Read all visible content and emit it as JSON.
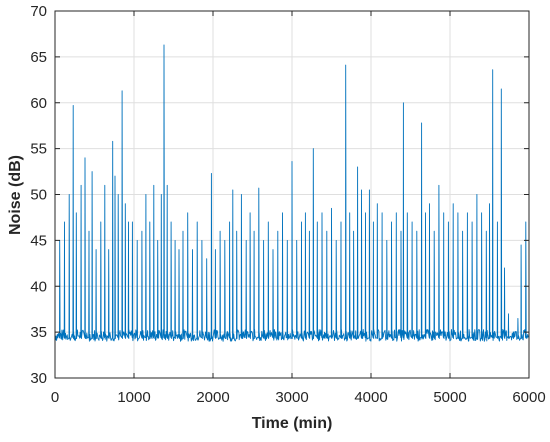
{
  "chart_data": {
    "type": "line",
    "title": "",
    "xlabel": "Time (min)",
    "ylabel": "Noise (dB)",
    "xlim": [
      0,
      6000
    ],
    "ylim": [
      30,
      70
    ],
    "xticks": [
      0,
      1000,
      2000,
      3000,
      4000,
      5000,
      6000
    ],
    "yticks": [
      30,
      35,
      40,
      45,
      50,
      55,
      60,
      65,
      70
    ],
    "xtick_labels": [
      "0",
      "1000",
      "2000",
      "3000",
      "4000",
      "5000",
      "6000"
    ],
    "ytick_labels": [
      "30",
      "35",
      "40",
      "45",
      "50",
      "55",
      "60",
      "65",
      "70"
    ],
    "grid": true,
    "baseline_db": 34.0,
    "line_color": "#0072BD",
    "peaks": [
      {
        "x": 60,
        "y": 45
      },
      {
        "x": 120,
        "y": 47
      },
      {
        "x": 180,
        "y": 50
      },
      {
        "x": 230,
        "y": 59.7
      },
      {
        "x": 270,
        "y": 48
      },
      {
        "x": 330,
        "y": 51
      },
      {
        "x": 380,
        "y": 54
      },
      {
        "x": 430,
        "y": 46
      },
      {
        "x": 470,
        "y": 52.5
      },
      {
        "x": 520,
        "y": 44
      },
      {
        "x": 580,
        "y": 47
      },
      {
        "x": 630,
        "y": 51
      },
      {
        "x": 680,
        "y": 44
      },
      {
        "x": 730,
        "y": 55.8
      },
      {
        "x": 760,
        "y": 52
      },
      {
        "x": 800,
        "y": 50
      },
      {
        "x": 850,
        "y": 61.3
      },
      {
        "x": 890,
        "y": 49
      },
      {
        "x": 930,
        "y": 47
      },
      {
        "x": 980,
        "y": 47
      },
      {
        "x": 1040,
        "y": 45
      },
      {
        "x": 1100,
        "y": 46
      },
      {
        "x": 1150,
        "y": 50
      },
      {
        "x": 1200,
        "y": 47
      },
      {
        "x": 1250,
        "y": 51
      },
      {
        "x": 1300,
        "y": 45
      },
      {
        "x": 1345,
        "y": 50
      },
      {
        "x": 1380,
        "y": 66.3
      },
      {
        "x": 1420,
        "y": 51
      },
      {
        "x": 1470,
        "y": 47
      },
      {
        "x": 1520,
        "y": 45
      },
      {
        "x": 1570,
        "y": 44
      },
      {
        "x": 1620,
        "y": 46
      },
      {
        "x": 1680,
        "y": 48
      },
      {
        "x": 1740,
        "y": 44
      },
      {
        "x": 1800,
        "y": 47
      },
      {
        "x": 1860,
        "y": 45
      },
      {
        "x": 1920,
        "y": 43
      },
      {
        "x": 1980,
        "y": 52.3
      },
      {
        "x": 2030,
        "y": 44
      },
      {
        "x": 2090,
        "y": 46
      },
      {
        "x": 2150,
        "y": 45
      },
      {
        "x": 2210,
        "y": 47
      },
      {
        "x": 2250,
        "y": 50.5
      },
      {
        "x": 2300,
        "y": 46
      },
      {
        "x": 2360,
        "y": 50
      },
      {
        "x": 2420,
        "y": 45
      },
      {
        "x": 2470,
        "y": 48
      },
      {
        "x": 2520,
        "y": 46
      },
      {
        "x": 2580,
        "y": 50.7
      },
      {
        "x": 2640,
        "y": 45
      },
      {
        "x": 2700,
        "y": 47
      },
      {
        "x": 2760,
        "y": 44
      },
      {
        "x": 2820,
        "y": 46
      },
      {
        "x": 2880,
        "y": 48
      },
      {
        "x": 2940,
        "y": 45
      },
      {
        "x": 3000,
        "y": 53.6
      },
      {
        "x": 3060,
        "y": 45
      },
      {
        "x": 3120,
        "y": 47
      },
      {
        "x": 3170,
        "y": 48
      },
      {
        "x": 3220,
        "y": 46
      },
      {
        "x": 3270,
        "y": 55
      },
      {
        "x": 3320,
        "y": 47
      },
      {
        "x": 3380,
        "y": 48
      },
      {
        "x": 3440,
        "y": 46
      },
      {
        "x": 3500,
        "y": 48.5
      },
      {
        "x": 3560,
        "y": 45
      },
      {
        "x": 3620,
        "y": 47
      },
      {
        "x": 3680,
        "y": 64.1
      },
      {
        "x": 3730,
        "y": 48
      },
      {
        "x": 3780,
        "y": 46
      },
      {
        "x": 3830,
        "y": 53
      },
      {
        "x": 3880,
        "y": 50.5
      },
      {
        "x": 3930,
        "y": 48
      },
      {
        "x": 3980,
        "y": 50.5
      },
      {
        "x": 4030,
        "y": 47
      },
      {
        "x": 4080,
        "y": 49
      },
      {
        "x": 4140,
        "y": 48
      },
      {
        "x": 4200,
        "y": 45
      },
      {
        "x": 4260,
        "y": 47
      },
      {
        "x": 4320,
        "y": 48
      },
      {
        "x": 4380,
        "y": 46
      },
      {
        "x": 4410,
        "y": 60
      },
      {
        "x": 4460,
        "y": 48
      },
      {
        "x": 4520,
        "y": 47
      },
      {
        "x": 4580,
        "y": 46
      },
      {
        "x": 4640,
        "y": 57.8
      },
      {
        "x": 4690,
        "y": 48
      },
      {
        "x": 4740,
        "y": 49
      },
      {
        "x": 4800,
        "y": 46
      },
      {
        "x": 4860,
        "y": 51
      },
      {
        "x": 4920,
        "y": 48
      },
      {
        "x": 4980,
        "y": 47
      },
      {
        "x": 5040,
        "y": 49
      },
      {
        "x": 5100,
        "y": 48
      },
      {
        "x": 5160,
        "y": 46
      },
      {
        "x": 5220,
        "y": 48
      },
      {
        "x": 5280,
        "y": 47
      },
      {
        "x": 5340,
        "y": 50
      },
      {
        "x": 5400,
        "y": 48
      },
      {
        "x": 5460,
        "y": 46
      },
      {
        "x": 5500,
        "y": 49
      },
      {
        "x": 5540,
        "y": 63.6
      },
      {
        "x": 5600,
        "y": 47
      },
      {
        "x": 5650,
        "y": 61.5
      },
      {
        "x": 5690,
        "y": 42
      },
      {
        "x": 5740,
        "y": 37
      },
      {
        "x": 5800,
        "y": 35
      },
      {
        "x": 5860,
        "y": 36.5
      },
      {
        "x": 5900,
        "y": 44.5
      },
      {
        "x": 5960,
        "y": 47
      }
    ]
  }
}
